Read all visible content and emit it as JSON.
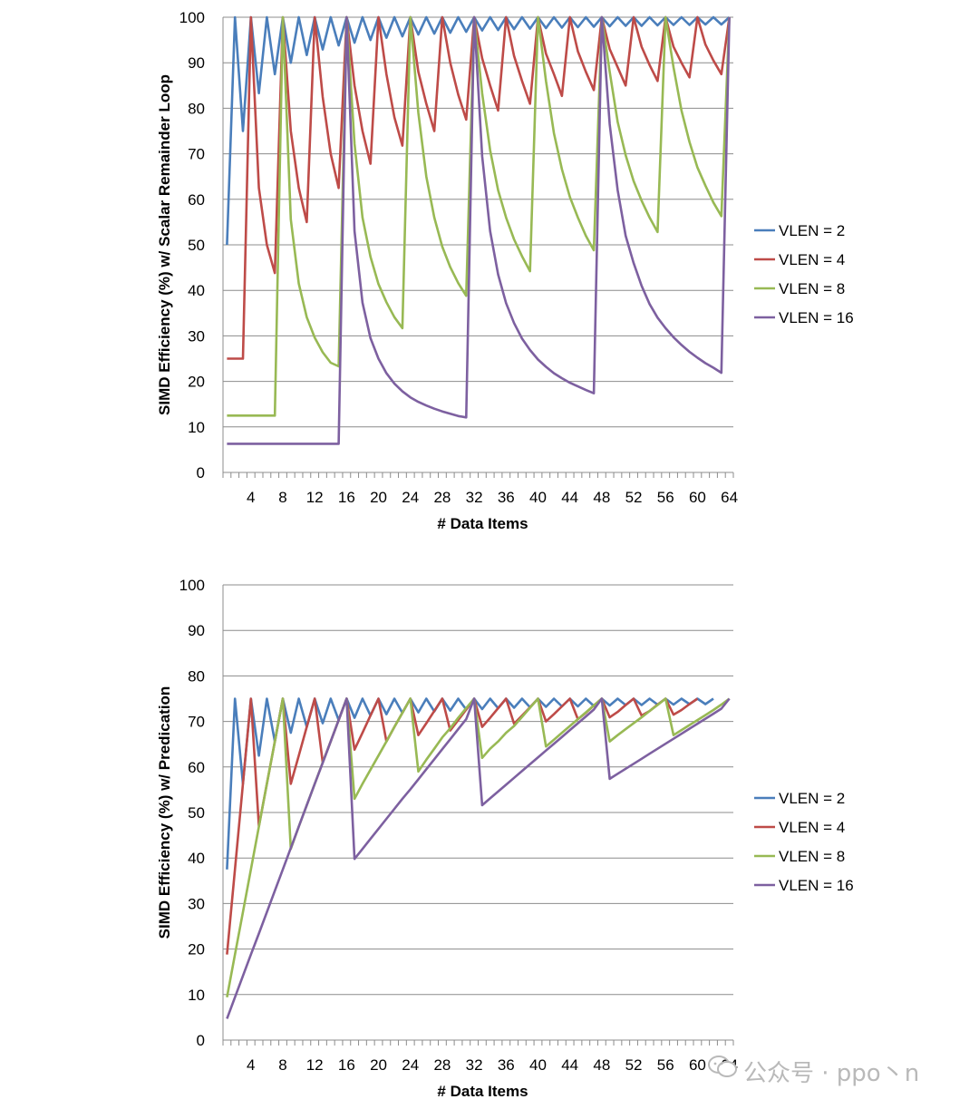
{
  "chart_data": [
    {
      "type": "line",
      "ylabel": "SIMD Efficiency (%) w/ Scalar Remainder Loop",
      "xlabel": "# Data Items",
      "x": {
        "start": 1,
        "end": 64
      },
      "x_ticks": [
        4,
        8,
        12,
        16,
        20,
        24,
        28,
        32,
        36,
        40,
        44,
        48,
        52,
        56,
        60,
        64
      ],
      "y_ticks": [
        0,
        10,
        20,
        30,
        40,
        50,
        60,
        70,
        80,
        90,
        100
      ],
      "ylim": [
        0,
        100
      ],
      "grid": true,
      "legend": "right",
      "series": [
        {
          "name": "VLEN = 2",
          "color": "#4a7ebb",
          "values": [
            50,
            100,
            75,
            100,
            83.3,
            100,
            87.5,
            100,
            90,
            100,
            91.7,
            100,
            92.9,
            100,
            93.8,
            100,
            94.4,
            100,
            95,
            100,
            95.5,
            100,
            95.8,
            100,
            96.2,
            100,
            96.4,
            100,
            96.6,
            100,
            96.8,
            100,
            97.1,
            100,
            97.2,
            100,
            97.4,
            100,
            97.5,
            100,
            97.6,
            100,
            97.7,
            100,
            97.8,
            100,
            97.9,
            100,
            98,
            100,
            98.1,
            100,
            98.1,
            100,
            98.2,
            100,
            98.3,
            100,
            98.3,
            100,
            98.4,
            100,
            98.4,
            100
          ]
        },
        {
          "name": "VLEN = 4",
          "color": "#be4b48",
          "values": [
            25,
            25,
            25,
            100,
            62.5,
            50,
            43.8,
            100,
            75,
            62.5,
            55,
            100,
            82.5,
            70,
            62.5,
            100,
            85,
            75,
            67.8,
            100,
            87.5,
            78,
            71.8,
            100,
            88,
            81,
            75,
            100,
            90,
            83,
            77.5,
            100,
            91,
            85,
            79.5,
            100,
            91.5,
            86,
            81,
            100,
            92,
            87.5,
            82.7,
            100,
            92.5,
            88,
            84,
            100,
            93,
            89,
            85,
            100,
            93.5,
            89.5,
            86,
            100,
            93.5,
            90,
            86.8,
            100,
            94,
            90.5,
            87.5,
            100
          ]
        },
        {
          "name": "VLEN = 8",
          "color": "#98b954",
          "values": [
            12.5,
            12.5,
            12.5,
            12.5,
            12.5,
            12.5,
            12.5,
            100,
            55.6,
            41.5,
            34.1,
            29.6,
            26.4,
            24.1,
            23.3,
            100,
            72.2,
            56,
            47.4,
            41.4,
            37.4,
            34.1,
            31.7,
            100,
            79,
            65,
            56,
            49.6,
            45.1,
            41.6,
            38.8,
            100,
            83.3,
            70.8,
            62,
            56,
            51.2,
            47.5,
            44.2,
            100,
            86,
            74.5,
            66.6,
            60.5,
            56,
            52,
            48.8,
            100,
            88,
            77,
            69.7,
            64,
            59.7,
            56,
            52.8,
            100,
            89,
            79.5,
            72.6,
            67,
            63,
            59.3,
            56.3,
            100
          ]
        },
        {
          "name": "VLEN = 16",
          "color": "#7d60a0",
          "values": [
            6.3,
            6.3,
            6.3,
            6.3,
            6.3,
            6.3,
            6.3,
            6.3,
            6.3,
            6.3,
            6.3,
            6.3,
            6.3,
            6.3,
            6.3,
            100,
            53,
            37.3,
            29.5,
            25,
            21.8,
            19.5,
            17.8,
            16.5,
            15.5,
            14.7,
            14,
            13.4,
            12.9,
            12.4,
            12.1,
            100,
            69.5,
            53,
            43.5,
            37.2,
            32.8,
            29.4,
            26.9,
            24.8,
            23.2,
            21.8,
            20.7,
            19.7,
            18.9,
            18.1,
            17.4,
            100,
            76.5,
            62,
            52,
            46,
            41,
            37,
            34,
            31.7,
            29.7,
            28,
            26.5,
            25.2,
            24,
            23,
            21.9,
            100
          ]
        }
      ]
    },
    {
      "type": "line",
      "ylabel": "SIMD Efficiency (%) w/ Predication",
      "xlabel": "# Data Items",
      "x": {
        "start": 1,
        "end": 64
      },
      "x_ticks": [
        4,
        8,
        12,
        16,
        20,
        24,
        28,
        32,
        36,
        40,
        44,
        48,
        52,
        56,
        60,
        64
      ],
      "y_ticks": [
        0,
        10,
        20,
        30,
        40,
        50,
        60,
        70,
        80,
        90,
        100
      ],
      "ylim": [
        0,
        100
      ],
      "grid": true,
      "legend": "right",
      "series": [
        {
          "name": "VLEN = 2",
          "color": "#4a7ebb",
          "values": [
            37.5,
            75,
            56.3,
            75,
            62.5,
            75,
            65.6,
            75,
            67.5,
            75,
            68.8,
            75,
            69.6,
            75,
            70.3,
            75,
            70.8,
            75,
            71.3,
            75,
            71.6,
            75,
            71.9,
            75,
            72,
            75,
            72.2,
            75,
            72.4,
            75,
            72.6,
            75,
            72.7,
            75,
            72.9,
            75,
            73,
            75,
            73.1,
            75,
            73.2,
            75,
            73.3,
            75,
            73.3,
            75,
            73.4,
            75,
            73.5,
            75,
            73.6,
            75,
            73.6,
            75,
            73.7,
            75,
            73.7,
            75,
            73.8,
            75,
            73.8,
            75
          ]
        },
        {
          "name": "VLEN = 4",
          "color": "#be4b48",
          "values": [
            18.8,
            37.5,
            56.3,
            75,
            47,
            56.3,
            65.6,
            75,
            56.3,
            62.5,
            68.8,
            75,
            61,
            65.6,
            70.3,
            75,
            63.8,
            67.5,
            71.3,
            75,
            65.6,
            68.8,
            71.9,
            75,
            67,
            69.6,
            72.3,
            75,
            68,
            70.3,
            72.6,
            75,
            68.8,
            70.8,
            72.9,
            75,
            69.5,
            71.3,
            73.1,
            75,
            70,
            71.6,
            73.3,
            75,
            70.5,
            71.9,
            73.5,
            75,
            70.9,
            72.1,
            73.6,
            75,
            71.3,
            72.3,
            73.7,
            75,
            71.5,
            72.5,
            73.8,
            75
          ]
        },
        {
          "name": "VLEN = 8",
          "color": "#98b954",
          "values": [
            9.4,
            18.8,
            28.1,
            37.5,
            46.9,
            56.3,
            65.6,
            75,
            42,
            46.9,
            51.6,
            56.3,
            61,
            65.6,
            70.3,
            75,
            53,
            56.3,
            59.4,
            62.5,
            65.6,
            68.8,
            71.9,
            75,
            59,
            61.6,
            64,
            66.5,
            68.5,
            70.8,
            72.9,
            75,
            62,
            64,
            65.6,
            67.5,
            69,
            71,
            73,
            75,
            64.5,
            66,
            67.5,
            69,
            70.5,
            72,
            73.5,
            75,
            65.6,
            67,
            68.3,
            69.6,
            70.9,
            72.3,
            73.6,
            75,
            67,
            68.1,
            69.2,
            70.3,
            71.4,
            72.5,
            73.7,
            75
          ]
        },
        {
          "name": "VLEN = 16",
          "color": "#7d60a0",
          "values": [
            4.7,
            9.4,
            14.1,
            18.8,
            23.4,
            28.1,
            32.8,
            37.5,
            42.2,
            46.9,
            51.6,
            56.3,
            60.9,
            65.6,
            70.3,
            75,
            39.8,
            42,
            44.2,
            46.4,
            48.6,
            50.8,
            53,
            55.1,
            57.3,
            59.5,
            61.7,
            63.9,
            66.1,
            68.3,
            70.5,
            75,
            51.6,
            53.1,
            54.6,
            56.1,
            57.6,
            59.1,
            60.6,
            62.1,
            63.6,
            65.1,
            66.6,
            68.1,
            69.6,
            71.1,
            72.6,
            75,
            57.4,
            58.5,
            59.6,
            60.7,
            61.8,
            62.9,
            64,
            65.1,
            66.2,
            67.3,
            68.4,
            69.5,
            70.6,
            71.7,
            72.8,
            75
          ]
        }
      ]
    }
  ],
  "watermark": {
    "text": "公众号 · ppo丶n"
  }
}
